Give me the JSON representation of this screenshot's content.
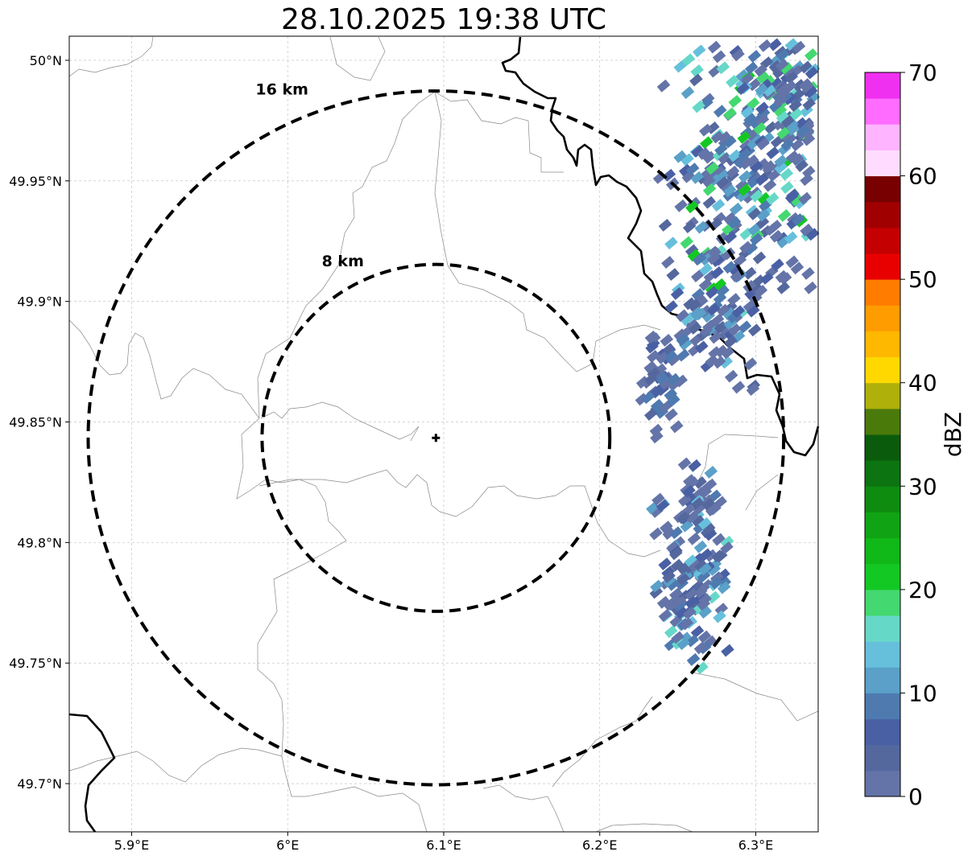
{
  "title": "28.10.2025 19:38 UTC",
  "map": {
    "lon_range": [
      5.86,
      6.34
    ],
    "lat_range": [
      49.68,
      50.01
    ],
    "x_ticks": [
      {
        "value": 5.9,
        "label": "5.9°E"
      },
      {
        "value": 6.0,
        "label": "6°E"
      },
      {
        "value": 6.1,
        "label": "6.1°E"
      },
      {
        "value": 6.2,
        "label": "6.2°E"
      },
      {
        "value": 6.3,
        "label": "6.3°E"
      }
    ],
    "y_ticks": [
      {
        "value": 50.0,
        "label": "50°N"
      },
      {
        "value": 49.95,
        "label": "49.95°N"
      },
      {
        "value": 49.9,
        "label": "49.9°N"
      },
      {
        "value": 49.85,
        "label": "49.85°N"
      },
      {
        "value": 49.8,
        "label": "49.8°N"
      },
      {
        "value": 49.75,
        "label": "49.75°N"
      },
      {
        "value": 49.7,
        "label": "49.7°N"
      }
    ],
    "radar_center": {
      "lon": 6.095,
      "lat": 49.8434
    },
    "range_rings": [
      {
        "radius_km": 8,
        "label": "8 km"
      },
      {
        "radius_km": 16,
        "label": "16 km"
      }
    ],
    "echo_clusters": [
      {
        "name": "northeast-band",
        "lon": 6.29,
        "lat": 49.955,
        "spread_lon": 0.035,
        "spread_lat": 0.04,
        "count": 260,
        "max_dbz": 22
      },
      {
        "name": "north-east-edge",
        "lon": 6.32,
        "lat": 49.99,
        "spread_lon": 0.018,
        "spread_lat": 0.018,
        "count": 90,
        "max_dbz": 20
      },
      {
        "name": "mid-east-band",
        "lon": 6.27,
        "lat": 49.895,
        "spread_lon": 0.02,
        "spread_lat": 0.02,
        "count": 90,
        "max_dbz": 14
      },
      {
        "name": "east-small",
        "lon": 6.235,
        "lat": 49.865,
        "spread_lon": 0.01,
        "spread_lat": 0.018,
        "count": 50,
        "max_dbz": 10
      },
      {
        "name": "southeast-cell",
        "lon": 6.255,
        "lat": 49.785,
        "spread_lon": 0.018,
        "spread_lat": 0.025,
        "count": 140,
        "max_dbz": 16
      },
      {
        "name": "southeast-small",
        "lon": 6.26,
        "lat": 49.82,
        "spread_lon": 0.008,
        "spread_lat": 0.01,
        "count": 25,
        "max_dbz": 14
      }
    ]
  },
  "colorbar": {
    "label": "dBZ",
    "min": 0,
    "max": 70,
    "step": 2.5,
    "tick_labels": [
      "0",
      "10",
      "20",
      "30",
      "40",
      "50",
      "60",
      "70"
    ],
    "colors": [
      "#6474a8",
      "#54689e",
      "#4a60a4",
      "#4e7ab0",
      "#5aa0c8",
      "#66c0dc",
      "#66d8c8",
      "#44d870",
      "#14c824",
      "#10b818",
      "#10a414",
      "#0e8c10",
      "#0c7410",
      "#0a5c0c",
      "#4a7a0a",
      "#b0b00a",
      "#ffd800",
      "#ffb800",
      "#ff9c00",
      "#ff7c00",
      "#e80000",
      "#c40000",
      "#a00000",
      "#780000",
      "#ffdcff",
      "#ffb4ff",
      "#ff6cff",
      "#f030f0"
    ]
  }
}
